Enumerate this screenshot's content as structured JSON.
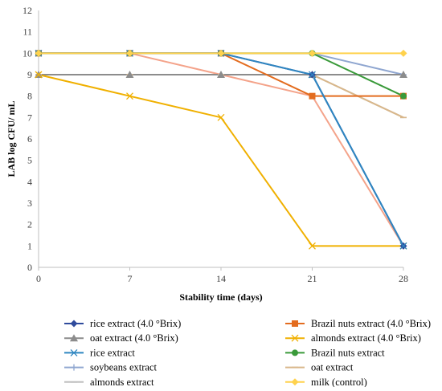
{
  "chart_data": {
    "type": "line",
    "title": "",
    "xlabel": "Stability time (days)",
    "ylabel": "LAB log CFU/ mL",
    "x": [
      0,
      7,
      14,
      21,
      28
    ],
    "xlim": [
      0,
      28
    ],
    "ylim": [
      0,
      12
    ],
    "y_ticks": [
      0,
      1,
      2,
      3,
      4,
      5,
      6,
      7,
      8,
      9,
      10,
      11,
      12
    ],
    "grid": false,
    "legend_position": "bottom",
    "series": [
      {
        "name": "rice extract (4.0 °Brix)",
        "values": [
          10,
          10,
          10,
          9,
          1
        ],
        "color": "#2f4b9c",
        "marker": "diamond"
      },
      {
        "name": "Brazil nuts extract  (4.0 °Brix)",
        "values": [
          10,
          10,
          10,
          8,
          8
        ],
        "color": "#e36c1f",
        "marker": "square"
      },
      {
        "name": "oat extract (4.0 °Brix)",
        "values": [
          9,
          9,
          9,
          9,
          9
        ],
        "color": "#8c8c8c",
        "marker": "triangle"
      },
      {
        "name": "almonds extract  (4.0 °Brix)",
        "values": [
          9,
          8,
          7,
          1,
          1
        ],
        "color": "#f0b000",
        "marker": "x"
      },
      {
        "name": "rice extract",
        "values": [
          10,
          10,
          10,
          9,
          1
        ],
        "color": "#2e86c1",
        "marker": "x"
      },
      {
        "name": "Brazil nuts extract",
        "values": [
          10,
          10,
          10,
          10,
          8
        ],
        "color": "#3a9a3a",
        "marker": "circle"
      },
      {
        "name": "soybeans extract",
        "values": [
          10,
          10,
          10,
          10,
          9
        ],
        "color": "#8fa6d0",
        "marker": "plus"
      },
      {
        "name": "oat extract",
        "values": [
          9,
          9,
          9,
          9,
          7
        ],
        "color": "#d9b78a",
        "marker": "dash"
      },
      {
        "name": "almonds extract",
        "values": [
          9,
          9,
          9,
          9,
          7
        ],
        "color": "#bfbfbf",
        "marker": "dash"
      },
      {
        "name": "milk (control)",
        "values": [
          10,
          10,
          10,
          10,
          10
        ],
        "color": "#ffd24d",
        "marker": "diamond"
      },
      {
        "name": "",
        "values": [
          10,
          10,
          9,
          8,
          1
        ],
        "color": "#f4a38a",
        "marker": "none"
      }
    ]
  }
}
